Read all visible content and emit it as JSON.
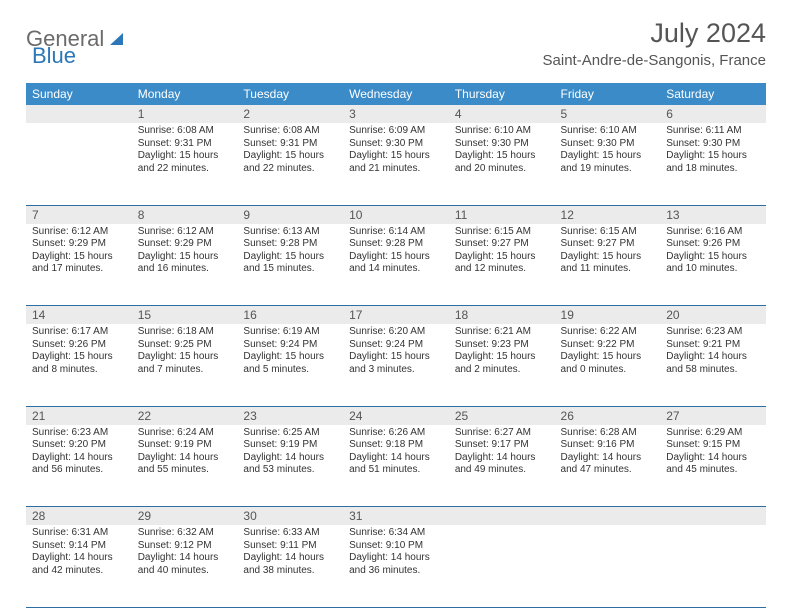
{
  "brand": {
    "part1": "General",
    "part2": "Blue"
  },
  "title": {
    "month": "July 2024",
    "location": "Saint-Andre-de-Sangonis, France"
  },
  "colors": {
    "header_bg": "#3b8bc9",
    "header_text": "#ffffff",
    "daynum_bg": "#ebebeb",
    "border": "#2e6fa3",
    "text_main": "#333333",
    "text_muted": "#555555",
    "logo_gray": "#6b6b6b",
    "logo_blue": "#2b77b8",
    "background": "#ffffff"
  },
  "typography": {
    "month_size": 27,
    "location_size": 15,
    "weekday_size": 12,
    "daynum_size": 12,
    "cell_size": 10
  },
  "weekdays": [
    "Sunday",
    "Monday",
    "Tuesday",
    "Wednesday",
    "Thursday",
    "Friday",
    "Saturday"
  ],
  "weeks": [
    [
      null,
      {
        "n": "1",
        "sunrise": "6:08 AM",
        "sunset": "9:31 PM",
        "dl": "15 hours and 22 minutes."
      },
      {
        "n": "2",
        "sunrise": "6:08 AM",
        "sunset": "9:31 PM",
        "dl": "15 hours and 22 minutes."
      },
      {
        "n": "3",
        "sunrise": "6:09 AM",
        "sunset": "9:30 PM",
        "dl": "15 hours and 21 minutes."
      },
      {
        "n": "4",
        "sunrise": "6:10 AM",
        "sunset": "9:30 PM",
        "dl": "15 hours and 20 minutes."
      },
      {
        "n": "5",
        "sunrise": "6:10 AM",
        "sunset": "9:30 PM",
        "dl": "15 hours and 19 minutes."
      },
      {
        "n": "6",
        "sunrise": "6:11 AM",
        "sunset": "9:30 PM",
        "dl": "15 hours and 18 minutes."
      }
    ],
    [
      {
        "n": "7",
        "sunrise": "6:12 AM",
        "sunset": "9:29 PM",
        "dl": "15 hours and 17 minutes."
      },
      {
        "n": "8",
        "sunrise": "6:12 AM",
        "sunset": "9:29 PM",
        "dl": "15 hours and 16 minutes."
      },
      {
        "n": "9",
        "sunrise": "6:13 AM",
        "sunset": "9:28 PM",
        "dl": "15 hours and 15 minutes."
      },
      {
        "n": "10",
        "sunrise": "6:14 AM",
        "sunset": "9:28 PM",
        "dl": "15 hours and 14 minutes."
      },
      {
        "n": "11",
        "sunrise": "6:15 AM",
        "sunset": "9:27 PM",
        "dl": "15 hours and 12 minutes."
      },
      {
        "n": "12",
        "sunrise": "6:15 AM",
        "sunset": "9:27 PM",
        "dl": "15 hours and 11 minutes."
      },
      {
        "n": "13",
        "sunrise": "6:16 AM",
        "sunset": "9:26 PM",
        "dl": "15 hours and 10 minutes."
      }
    ],
    [
      {
        "n": "14",
        "sunrise": "6:17 AM",
        "sunset": "9:26 PM",
        "dl": "15 hours and 8 minutes."
      },
      {
        "n": "15",
        "sunrise": "6:18 AM",
        "sunset": "9:25 PM",
        "dl": "15 hours and 7 minutes."
      },
      {
        "n": "16",
        "sunrise": "6:19 AM",
        "sunset": "9:24 PM",
        "dl": "15 hours and 5 minutes."
      },
      {
        "n": "17",
        "sunrise": "6:20 AM",
        "sunset": "9:24 PM",
        "dl": "15 hours and 3 minutes."
      },
      {
        "n": "18",
        "sunrise": "6:21 AM",
        "sunset": "9:23 PM",
        "dl": "15 hours and 2 minutes."
      },
      {
        "n": "19",
        "sunrise": "6:22 AM",
        "sunset": "9:22 PM",
        "dl": "15 hours and 0 minutes."
      },
      {
        "n": "20",
        "sunrise": "6:23 AM",
        "sunset": "9:21 PM",
        "dl": "14 hours and 58 minutes."
      }
    ],
    [
      {
        "n": "21",
        "sunrise": "6:23 AM",
        "sunset": "9:20 PM",
        "dl": "14 hours and 56 minutes."
      },
      {
        "n": "22",
        "sunrise": "6:24 AM",
        "sunset": "9:19 PM",
        "dl": "14 hours and 55 minutes."
      },
      {
        "n": "23",
        "sunrise": "6:25 AM",
        "sunset": "9:19 PM",
        "dl": "14 hours and 53 minutes."
      },
      {
        "n": "24",
        "sunrise": "6:26 AM",
        "sunset": "9:18 PM",
        "dl": "14 hours and 51 minutes."
      },
      {
        "n": "25",
        "sunrise": "6:27 AM",
        "sunset": "9:17 PM",
        "dl": "14 hours and 49 minutes."
      },
      {
        "n": "26",
        "sunrise": "6:28 AM",
        "sunset": "9:16 PM",
        "dl": "14 hours and 47 minutes."
      },
      {
        "n": "27",
        "sunrise": "6:29 AM",
        "sunset": "9:15 PM",
        "dl": "14 hours and 45 minutes."
      }
    ],
    [
      {
        "n": "28",
        "sunrise": "6:31 AM",
        "sunset": "9:14 PM",
        "dl": "14 hours and 42 minutes."
      },
      {
        "n": "29",
        "sunrise": "6:32 AM",
        "sunset": "9:12 PM",
        "dl": "14 hours and 40 minutes."
      },
      {
        "n": "30",
        "sunrise": "6:33 AM",
        "sunset": "9:11 PM",
        "dl": "14 hours and 38 minutes."
      },
      {
        "n": "31",
        "sunrise": "6:34 AM",
        "sunset": "9:10 PM",
        "dl": "14 hours and 36 minutes."
      },
      null,
      null,
      null
    ]
  ],
  "labels": {
    "sunrise": "Sunrise:",
    "sunset": "Sunset:",
    "daylight": "Daylight:"
  }
}
